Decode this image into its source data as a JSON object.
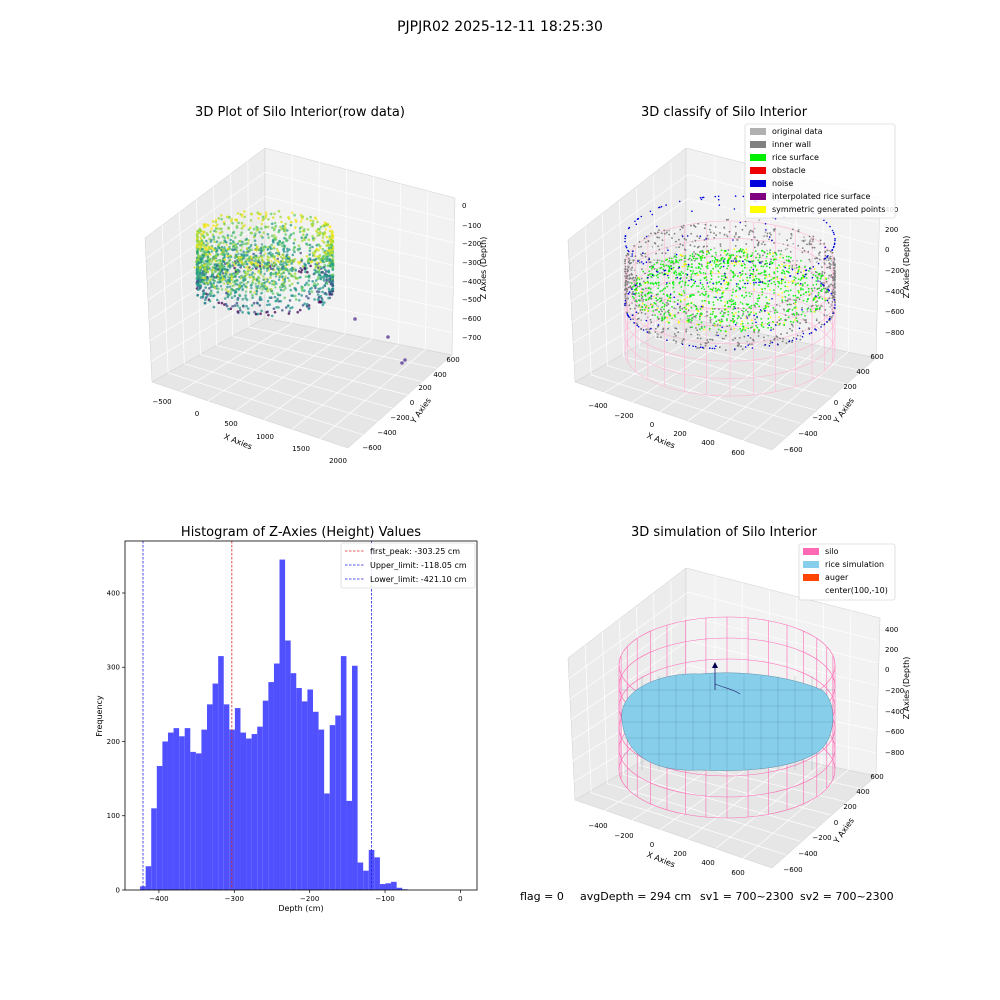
{
  "figure_title": "PJPJR02 2025-12-11 18:25:30",
  "footer": {
    "flag": "flag = 0",
    "avg_depth": "avgDepth = 294 cm",
    "sv1": "sv1 = 700~2300",
    "sv2": "sv2 = 700~2300"
  },
  "colors": {
    "hist_bar": "#4c4cff",
    "first_peak": "#d62728",
    "limits": "#1f1fdd",
    "silo": "#ff69b4",
    "rice_sim": "#87ceeb",
    "auger": "#ff4500"
  },
  "chart_data": [
    {
      "type": "scatter3d",
      "title": "3D Plot of Silo Interior(row data)",
      "xlabel": "X Axies",
      "ylabel": "Y Axies",
      "zlabel": "Z Axies (Depth)",
      "x_ticks": [
        "−500",
        "0",
        "500",
        "1000",
        "1500",
        "2000"
      ],
      "y_ticks": [
        "−600",
        "−400",
        "−200",
        "0",
        "200",
        "400",
        "600"
      ],
      "z_ticks": [
        "0",
        "−100",
        "−200",
        "−300",
        "−400",
        "−500",
        "−600",
        "−700"
      ],
      "xlim": [
        -600,
        2000
      ],
      "ylim": [
        -650,
        650
      ],
      "zlim": [
        -720,
        20
      ],
      "colormap": "viridis"
    },
    {
      "type": "scatter3d",
      "title": "3D classify of Silo Interior",
      "xlabel": "X Axies",
      "ylabel": "Y Axies",
      "zlabel": "Z Axies (Depth)",
      "x_ticks": [
        "−400",
        "−200",
        "0",
        "200",
        "400",
        "600"
      ],
      "y_ticks": [
        "−600",
        "−400",
        "−200",
        "0",
        "200",
        "400",
        "600"
      ],
      "z_ticks": [
        "400",
        "200",
        "0",
        "−200",
        "−400",
        "−600",
        "−800"
      ],
      "xlim": [
        -500,
        700
      ],
      "ylim": [
        -650,
        650
      ],
      "zlim": [
        -900,
        450
      ],
      "legend_position": "top-right",
      "legend": [
        {
          "label": "original data",
          "color": "#b0b0b0"
        },
        {
          "label": "inner wall",
          "color": "#808080"
        },
        {
          "label": "rice surface",
          "color": "#00ee00"
        },
        {
          "label": "obstacle",
          "color": "#ee0000"
        },
        {
          "label": "noise",
          "color": "#0000dd"
        },
        {
          "label": "interpolated rice surface",
          "color": "#800080"
        },
        {
          "label": "symmetric generated points",
          "color": "#ffff00"
        }
      ]
    },
    {
      "type": "bar",
      "title": "Histogram of Z-Axies (Height) Values",
      "xlabel": "Depth (cm)",
      "ylabel": "Frequency",
      "xlim": [
        -445,
        22
      ],
      "ylim": [
        0,
        470
      ],
      "x_ticks": [
        -400,
        -300,
        -200,
        -100,
        0
      ],
      "x_tick_labels": [
        "−400",
        "−300",
        "−200",
        "−100",
        "0"
      ],
      "y_ticks": [
        0,
        100,
        200,
        300,
        400
      ],
      "bin_start": -425,
      "bin_width": 7.4,
      "values": [
        5,
        32,
        110,
        167,
        200,
        212,
        218,
        207,
        218,
        186,
        184,
        216,
        250,
        278,
        315,
        250,
        216,
        245,
        212,
        204,
        210,
        220,
        255,
        280,
        305,
        445,
        336,
        292,
        272,
        254,
        270,
        240,
        216,
        130,
        222,
        235,
        315,
        120,
        302,
        37,
        26,
        54,
        44,
        8,
        9,
        11,
        3,
        1
      ],
      "vlines": [
        {
          "label": "first_peak: -303.25 cm",
          "x": -303.25,
          "color": "#d62728"
        },
        {
          "label": "Upper_limit: -118.05 cm",
          "x": -118.05,
          "color": "#1f1fdd"
        },
        {
          "label": "Lower_limit: -421.10 cm",
          "x": -421.1,
          "color": "#1f1fdd"
        }
      ],
      "legend_position": "top-right"
    },
    {
      "type": "surface3d",
      "title": "3D simulation of Silo Interior",
      "xlabel": "X Axies",
      "ylabel": "Y Axies",
      "zlabel": "Z Axies (Depth)",
      "x_ticks": [
        "−400",
        "−200",
        "0",
        "200",
        "400",
        "600"
      ],
      "y_ticks": [
        "−600",
        "−400",
        "−200",
        "0",
        "200",
        "400",
        "600"
      ],
      "z_ticks": [
        "400",
        "200",
        "0",
        "−200",
        "−400",
        "−600",
        "−800"
      ],
      "xlim": [
        -500,
        700
      ],
      "ylim": [
        -650,
        650
      ],
      "zlim": [
        -900,
        450
      ],
      "legend_position": "top-right",
      "legend": [
        {
          "label": "silo",
          "color": "#ff69b4"
        },
        {
          "label": "rice simulation",
          "color": "#87ceeb"
        },
        {
          "label": "auger",
          "color": "#ff4500"
        },
        {
          "label": "center(100,-10)",
          "color": ""
        }
      ]
    }
  ]
}
